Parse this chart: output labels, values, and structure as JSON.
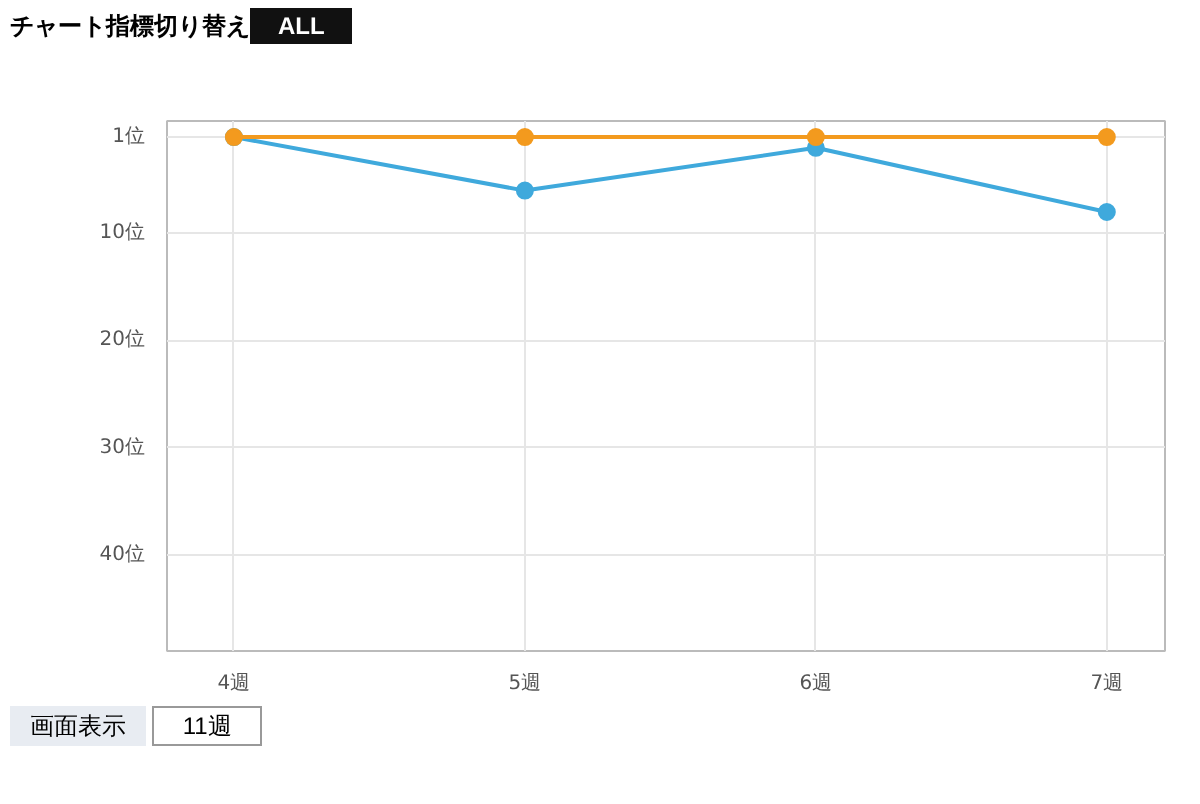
{
  "chart_data": {
    "type": "line",
    "categories": [
      "4週",
      "5週",
      "6週",
      "7週"
    ],
    "series": [
      {
        "color": "#3fa9dc",
        "values": [
          1,
          6,
          2,
          8
        ]
      },
      {
        "color": "#f39a1e",
        "values": [
          1,
          1,
          1,
          1
        ]
      }
    ],
    "ylim": [
      49,
      -0.5
    ],
    "yticks": [
      {
        "value": 1,
        "label": "1位"
      },
      {
        "value": 10,
        "label": "10位"
      },
      {
        "value": 20,
        "label": "20位"
      },
      {
        "value": 30,
        "label": "30位"
      },
      {
        "value": 40,
        "label": "40位"
      }
    ],
    "grid": true,
    "marker": "circle",
    "line_style": "solid",
    "annotations": [
      "チャート指標切り替え",
      "ALL",
      "画面表示",
      "11週"
    ]
  }
}
